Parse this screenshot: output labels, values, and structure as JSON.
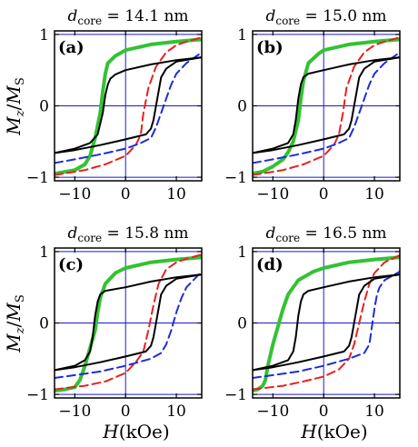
{
  "figure": {
    "ylabel": "M_z/M_S",
    "xlabel": "H(kOe)",
    "colors": {
      "black": "#000000",
      "red": "#e8201f",
      "blue": "#1f2bd9",
      "green": "#33c233",
      "grid": "#1a1acc"
    }
  },
  "chart_data": [
    {
      "type": "line",
      "title": "d_core = 14.1 nm",
      "title_prefix": "d",
      "title_sub": "core",
      "title_value": " = 14.1 nm",
      "panel_label": "(a)",
      "xlim": [
        -14,
        15
      ],
      "ylim": [
        -1.05,
        1.05
      ],
      "xticks": [
        -10,
        0,
        10
      ],
      "yticks": [
        -1,
        0,
        1
      ],
      "xticklabels": [
        "−10",
        "0",
        "10"
      ],
      "yticklabels": [
        "−1",
        "0",
        "1"
      ],
      "grid": true,
      "series": [
        {
          "color": "black",
          "style": "solid",
          "x": [
            -14,
            -10,
            -7,
            -5.5,
            -4.5,
            -4,
            -3.5,
            -3,
            -2,
            0,
            5,
            10,
            15
          ],
          "y": [
            -0.66,
            -0.6,
            -0.52,
            -0.4,
            -0.1,
            0.15,
            0.3,
            0.38,
            0.44,
            0.5,
            0.58,
            0.64,
            0.68
          ]
        },
        {
          "color": "black",
          "style": "solid",
          "x": [
            15,
            10,
            8,
            7,
            6.5,
            6,
            5.5,
            5,
            4,
            0,
            -5,
            -10,
            -14
          ],
          "y": [
            0.68,
            0.62,
            0.52,
            0.4,
            0.2,
            0.0,
            -0.2,
            -0.32,
            -0.4,
            -0.47,
            -0.55,
            -0.62,
            -0.66
          ]
        },
        {
          "color": "red",
          "style": "dashed",
          "x": [
            -14,
            -8,
            -4,
            0,
            2,
            3,
            3.5,
            4.5,
            6,
            8,
            10,
            12,
            15
          ],
          "y": [
            -0.97,
            -0.9,
            -0.82,
            -0.7,
            -0.55,
            -0.4,
            -0.1,
            0.25,
            0.55,
            0.75,
            0.85,
            0.9,
            0.96
          ]
        },
        {
          "color": "blue",
          "style": "dashed",
          "x": [
            -14,
            -10,
            -5,
            0,
            3,
            5,
            6,
            7,
            8,
            9,
            10,
            12,
            15
          ],
          "y": [
            -0.8,
            -0.75,
            -0.68,
            -0.6,
            -0.52,
            -0.45,
            -0.3,
            -0.1,
            0.1,
            0.3,
            0.45,
            0.6,
            0.75
          ]
        },
        {
          "color": "green",
          "style": "thick",
          "x": [
            -14,
            -10,
            -8,
            -7,
            -6,
            -5,
            -4.5,
            -4,
            -3.5,
            -2,
            0,
            5,
            10,
            15
          ],
          "y": [
            -0.95,
            -0.9,
            -0.82,
            -0.7,
            -0.45,
            -0.1,
            0.2,
            0.45,
            0.6,
            0.7,
            0.78,
            0.86,
            0.9,
            0.93
          ]
        }
      ]
    },
    {
      "type": "line",
      "title": "d_core = 15.0 nm",
      "title_prefix": "d",
      "title_sub": "core",
      "title_value": " = 15.0 nm",
      "panel_label": "(b)",
      "xlim": [
        -14,
        15
      ],
      "ylim": [
        -1.05,
        1.05
      ],
      "xticks": [
        -10,
        0,
        10
      ],
      "yticks": [
        -1,
        0,
        1
      ],
      "xticklabels": [
        "−10",
        "0",
        "10"
      ],
      "yticklabels": [
        "−1",
        "0",
        "1"
      ],
      "grid": true,
      "series": [
        {
          "color": "black",
          "style": "solid",
          "x": [
            -14,
            -10,
            -7,
            -6,
            -5.5,
            -5,
            -4.5,
            -4,
            -3,
            0,
            5,
            10,
            15
          ],
          "y": [
            -0.66,
            -0.6,
            -0.52,
            -0.4,
            -0.2,
            0.1,
            0.3,
            0.4,
            0.45,
            0.5,
            0.58,
            0.64,
            0.68
          ]
        },
        {
          "color": "black",
          "style": "solid",
          "x": [
            15,
            10,
            8,
            7,
            6.5,
            6,
            5.5,
            5,
            4,
            0,
            -5,
            -10,
            -14
          ],
          "y": [
            0.68,
            0.62,
            0.52,
            0.4,
            0.2,
            0.0,
            -0.2,
            -0.32,
            -0.4,
            -0.47,
            -0.55,
            -0.62,
            -0.66
          ]
        },
        {
          "color": "red",
          "style": "dashed",
          "x": [
            -14,
            -8,
            -4,
            0,
            2,
            3,
            3.8,
            4.5,
            6,
            8,
            10,
            12,
            15
          ],
          "y": [
            -0.97,
            -0.9,
            -0.82,
            -0.7,
            -0.55,
            -0.4,
            -0.1,
            0.25,
            0.55,
            0.75,
            0.85,
            0.9,
            0.96
          ]
        },
        {
          "color": "blue",
          "style": "dashed",
          "x": [
            -14,
            -10,
            -5,
            0,
            3,
            5,
            6,
            7,
            8,
            9,
            10,
            12,
            15
          ],
          "y": [
            -0.8,
            -0.75,
            -0.68,
            -0.6,
            -0.52,
            -0.45,
            -0.3,
            -0.1,
            0.1,
            0.3,
            0.45,
            0.6,
            0.75
          ]
        },
        {
          "color": "green",
          "style": "thick",
          "x": [
            -14,
            -12,
            -10,
            -8,
            -7,
            -6,
            -5,
            -4.5,
            -4,
            -3,
            -1,
            0,
            5,
            10,
            15
          ],
          "y": [
            -0.95,
            -0.92,
            -0.85,
            -0.75,
            -0.65,
            -0.5,
            -0.2,
            0.1,
            0.35,
            0.6,
            0.73,
            0.78,
            0.86,
            0.9,
            0.93
          ]
        }
      ]
    },
    {
      "type": "line",
      "title": "d_core = 15.8 nm",
      "title_prefix": "d",
      "title_sub": "core",
      "title_value": " = 15.8 nm",
      "panel_label": "(c)",
      "xlim": [
        -14,
        15
      ],
      "ylim": [
        -1.05,
        1.05
      ],
      "xticks": [
        -10,
        0,
        10
      ],
      "yticks": [
        -1,
        0,
        1
      ],
      "xticklabels": [
        "−10",
        "0",
        "10"
      ],
      "yticklabels": [
        "−1",
        "0",
        "1"
      ],
      "grid": true,
      "series": [
        {
          "color": "black",
          "style": "solid",
          "x": [
            -14,
            -10,
            -8,
            -7,
            -6.5,
            -6,
            -5.5,
            -5,
            -4,
            0,
            5,
            10,
            15
          ],
          "y": [
            -0.66,
            -0.6,
            -0.52,
            -0.4,
            -0.2,
            0.1,
            0.3,
            0.4,
            0.45,
            0.5,
            0.58,
            0.64,
            0.68
          ]
        },
        {
          "color": "black",
          "style": "solid",
          "x": [
            15,
            10,
            8,
            7,
            6.5,
            6,
            5.5,
            5,
            4,
            0,
            -5,
            -10,
            -14
          ],
          "y": [
            0.68,
            0.62,
            0.52,
            0.4,
            0.2,
            0.0,
            -0.2,
            -0.32,
            -0.4,
            -0.47,
            -0.55,
            -0.62,
            -0.66
          ]
        },
        {
          "color": "red",
          "style": "dashed",
          "x": [
            -14,
            -8,
            -4,
            0,
            2,
            3.5,
            4.5,
            5.5,
            6.5,
            8,
            10,
            12,
            15
          ],
          "y": [
            -0.93,
            -0.88,
            -0.82,
            -0.7,
            -0.55,
            -0.4,
            -0.1,
            0.25,
            0.55,
            0.75,
            0.85,
            0.9,
            0.96
          ]
        },
        {
          "color": "blue",
          "style": "dashed",
          "x": [
            -14,
            -10,
            -5,
            0,
            5,
            7,
            8,
            9,
            10,
            11,
            12,
            15
          ],
          "y": [
            -0.77,
            -0.73,
            -0.68,
            -0.6,
            -0.5,
            -0.42,
            -0.3,
            -0.1,
            0.15,
            0.35,
            0.5,
            0.72
          ]
        },
        {
          "color": "green",
          "style": "thick",
          "x": [
            -14,
            -12,
            -10,
            -9,
            -8,
            -7,
            -6,
            -5.5,
            -5,
            -4,
            -2,
            0,
            5,
            10,
            15
          ],
          "y": [
            -0.95,
            -0.93,
            -0.9,
            -0.8,
            -0.6,
            -0.35,
            -0.1,
            0.15,
            0.35,
            0.55,
            0.7,
            0.77,
            0.85,
            0.89,
            0.92
          ]
        }
      ]
    },
    {
      "type": "line",
      "title": "d_core = 16.5 nm",
      "title_prefix": "d",
      "title_sub": "core",
      "title_value": " = 16.5 nm",
      "panel_label": "(d)",
      "xlim": [
        -14,
        15
      ],
      "ylim": [
        -1.05,
        1.05
      ],
      "xticks": [
        -10,
        0,
        10
      ],
      "yticks": [
        -1,
        0,
        1
      ],
      "xticklabels": [
        "−10",
        "0",
        "10"
      ],
      "yticklabels": [
        "−1",
        "0",
        "1"
      ],
      "grid": true,
      "series": [
        {
          "color": "black",
          "style": "solid",
          "x": [
            -14,
            -10,
            -7,
            -6,
            -5.5,
            -5,
            -4.5,
            -4,
            -3,
            0,
            5,
            10,
            15
          ],
          "y": [
            -0.66,
            -0.6,
            -0.52,
            -0.4,
            -0.2,
            0.1,
            0.3,
            0.4,
            0.45,
            0.5,
            0.58,
            0.64,
            0.68
          ]
        },
        {
          "color": "black",
          "style": "solid",
          "x": [
            15,
            10,
            8,
            7,
            6.5,
            6,
            5.5,
            5,
            4,
            0,
            -5,
            -10,
            -14
          ],
          "y": [
            0.68,
            0.62,
            0.52,
            0.4,
            0.2,
            0.0,
            -0.2,
            -0.32,
            -0.4,
            -0.47,
            -0.55,
            -0.62,
            -0.66
          ]
        },
        {
          "color": "red",
          "style": "dashed",
          "x": [
            -14,
            -8,
            -4,
            0,
            3,
            5,
            6,
            7,
            8,
            9,
            10,
            12,
            15
          ],
          "y": [
            -0.93,
            -0.88,
            -0.82,
            -0.75,
            -0.65,
            -0.5,
            -0.3,
            0.0,
            0.3,
            0.55,
            0.7,
            0.85,
            0.95
          ]
        },
        {
          "color": "blue",
          "style": "dashed",
          "x": [
            -14,
            -10,
            -5,
            0,
            5,
            8,
            9,
            9.5,
            10,
            10.5,
            11,
            12,
            15
          ],
          "y": [
            -0.77,
            -0.73,
            -0.68,
            -0.6,
            -0.5,
            -0.42,
            -0.3,
            -0.05,
            0.2,
            0.4,
            0.5,
            0.6,
            0.72
          ]
        },
        {
          "color": "green",
          "style": "thick",
          "x": [
            -14,
            -13,
            -12,
            -11.5,
            -11,
            -10,
            -9,
            -8,
            -7,
            -5,
            -2,
            0,
            5,
            10,
            15
          ],
          "y": [
            -0.95,
            -0.93,
            -0.88,
            -0.8,
            -0.6,
            -0.3,
            -0.05,
            0.2,
            0.4,
            0.6,
            0.72,
            0.77,
            0.85,
            0.89,
            0.92
          ]
        }
      ]
    }
  ]
}
